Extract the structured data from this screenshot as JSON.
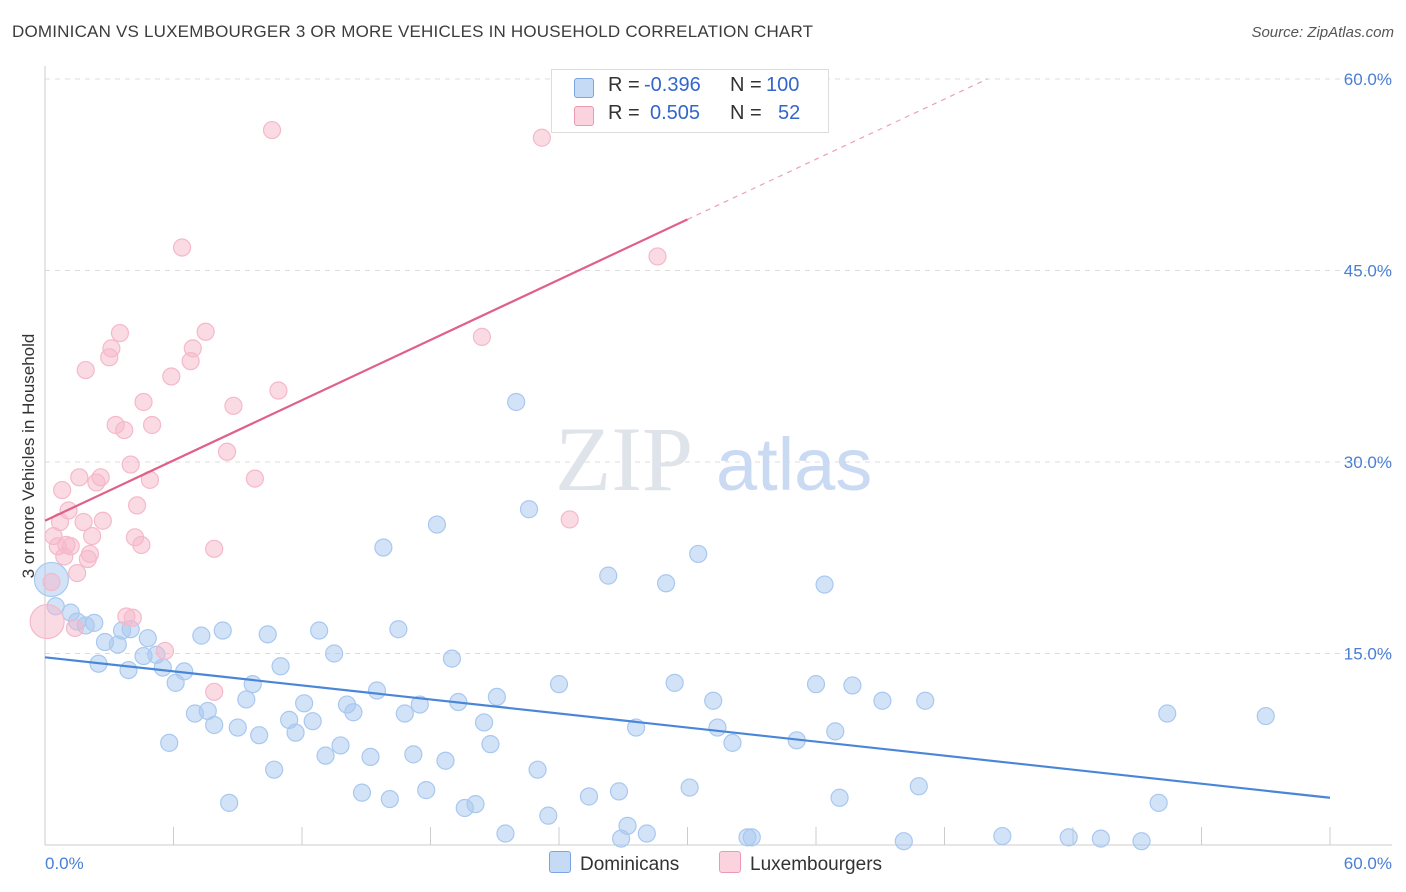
{
  "title": "DOMINICAN VS LUXEMBOURGER 3 OR MORE VEHICLES IN HOUSEHOLD CORRELATION CHART",
  "source": "Source: ZipAtlas.com",
  "watermark": {
    "zip": "ZIP",
    "atlas": "atlas"
  },
  "legend": {
    "rows": [
      {
        "r_label": "R =",
        "r_value": "-0.396",
        "n_label": "N =",
        "n_value": "100",
        "color": "#a8c8f0"
      },
      {
        "r_label": "R =",
        "r_value": "0.505",
        "n_label": "N =",
        "n_value": "52",
        "color": "#f5b8ca"
      }
    ]
  },
  "bottom_legend": [
    {
      "label": "Dominicans",
      "color": "#a8c8f0"
    },
    {
      "label": "Luxembourgers",
      "color": "#f5b8ca"
    }
  ],
  "chart_data": {
    "type": "scatter",
    "title": "DOMINICAN VS LUXEMBOURGER 3 OR MORE VEHICLES IN HOUSEHOLD CORRELATION CHART",
    "xlabel": "",
    "ylabel": "3 or more Vehicles in Household",
    "xlim": [
      0,
      60
    ],
    "ylim": [
      0,
      60
    ],
    "x_tick_labels": [
      "0.0%",
      "60.0%"
    ],
    "y_ticks": [
      15,
      30,
      45,
      60
    ],
    "y_tick_labels": [
      "15.0%",
      "30.0%",
      "45.0%",
      "60.0%"
    ],
    "grid": true,
    "legend_position": "top-center",
    "series": [
      {
        "name": "Dominicans",
        "color": "#4a86d8",
        "fill": "#a8c8f0",
        "trend": {
          "x": [
            0,
            60
          ],
          "y": [
            14.7,
            3.7
          ]
        },
        "points": [
          [
            0.3,
            20.8
          ],
          [
            0.5,
            18.7
          ],
          [
            1.2,
            18.2
          ],
          [
            1.5,
            17.5
          ],
          [
            1.9,
            17.2
          ],
          [
            2.3,
            17.4
          ],
          [
            2.5,
            14.2
          ],
          [
            2.8,
            15.9
          ],
          [
            3.4,
            15.7
          ],
          [
            3.6,
            16.8
          ],
          [
            3.9,
            13.7
          ],
          [
            4.0,
            16.9
          ],
          [
            4.6,
            14.8
          ],
          [
            4.8,
            16.2
          ],
          [
            5.2,
            14.9
          ],
          [
            5.5,
            13.9
          ],
          [
            5.8,
            8.0
          ],
          [
            6.1,
            12.7
          ],
          [
            6.5,
            13.6
          ],
          [
            7.0,
            10.3
          ],
          [
            7.3,
            16.4
          ],
          [
            7.6,
            10.5
          ],
          [
            7.9,
            9.4
          ],
          [
            8.3,
            16.8
          ],
          [
            8.6,
            3.3
          ],
          [
            9.0,
            9.2
          ],
          [
            9.4,
            11.4
          ],
          [
            9.7,
            12.6
          ],
          [
            10.0,
            8.6
          ],
          [
            10.4,
            16.5
          ],
          [
            10.7,
            5.9
          ],
          [
            11.0,
            14.0
          ],
          [
            11.4,
            9.8
          ],
          [
            11.7,
            8.8
          ],
          [
            12.1,
            11.1
          ],
          [
            12.5,
            9.7
          ],
          [
            12.8,
            16.8
          ],
          [
            13.1,
            7.0
          ],
          [
            13.5,
            15.0
          ],
          [
            13.8,
            7.8
          ],
          [
            14.1,
            11.0
          ],
          [
            14.4,
            10.4
          ],
          [
            14.8,
            4.1
          ],
          [
            15.2,
            6.9
          ],
          [
            15.5,
            12.1
          ],
          [
            15.8,
            23.3
          ],
          [
            16.1,
            3.6
          ],
          [
            16.5,
            16.9
          ],
          [
            16.8,
            10.3
          ],
          [
            17.2,
            7.1
          ],
          [
            17.5,
            11.0
          ],
          [
            17.8,
            4.3
          ],
          [
            18.3,
            25.1
          ],
          [
            18.7,
            6.6
          ],
          [
            19.0,
            14.6
          ],
          [
            19.3,
            11.2
          ],
          [
            19.6,
            2.9
          ],
          [
            20.1,
            3.2
          ],
          [
            20.5,
            9.6
          ],
          [
            20.8,
            7.9
          ],
          [
            21.1,
            11.6
          ],
          [
            21.5,
            0.9
          ],
          [
            22.0,
            34.7
          ],
          [
            22.6,
            26.3
          ],
          [
            23.0,
            5.9
          ],
          [
            23.5,
            2.3
          ],
          [
            24.0,
            12.6
          ],
          [
            25.4,
            3.8
          ],
          [
            26.3,
            21.1
          ],
          [
            26.8,
            4.2
          ],
          [
            27.2,
            1.5
          ],
          [
            27.6,
            9.2
          ],
          [
            28.1,
            0.9
          ],
          [
            29.0,
            20.5
          ],
          [
            29.4,
            12.7
          ],
          [
            30.1,
            4.5
          ],
          [
            30.5,
            22.8
          ],
          [
            31.2,
            11.3
          ],
          [
            31.4,
            9.2
          ],
          [
            32.8,
            0.6
          ],
          [
            33.0,
            0.6
          ],
          [
            32.1,
            8.0
          ],
          [
            35.1,
            8.2
          ],
          [
            36.0,
            12.6
          ],
          [
            36.4,
            20.4
          ],
          [
            36.9,
            8.9
          ],
          [
            37.1,
            3.7
          ],
          [
            37.7,
            12.5
          ],
          [
            39.1,
            11.3
          ],
          [
            40.1,
            0.3
          ],
          [
            40.8,
            4.6
          ],
          [
            41.1,
            11.3
          ],
          [
            47.8,
            0.6
          ],
          [
            49.3,
            0.5
          ],
          [
            51.2,
            0.3
          ],
          [
            52.0,
            3.3
          ],
          [
            52.4,
            10.3
          ],
          [
            57.0,
            10.1
          ],
          [
            44.7,
            0.7
          ],
          [
            26.9,
            0.5
          ]
        ]
      },
      {
        "name": "Luxembourgers",
        "color": "#e0608a",
        "fill": "#f5b8ca",
        "trend": {
          "x": [
            0,
            30.0
          ],
          "y": [
            25.4,
            49.0
          ]
        },
        "trend_dashed": {
          "x": [
            30.0,
            44.0
          ],
          "y": [
            49.0,
            60.0
          ]
        },
        "points": [
          [
            0.1,
            17.5
          ],
          [
            0.3,
            20.6
          ],
          [
            0.4,
            24.2
          ],
          [
            0.6,
            23.4
          ],
          [
            0.7,
            25.3
          ],
          [
            0.8,
            27.8
          ],
          [
            0.9,
            22.6
          ],
          [
            1.0,
            23.5
          ],
          [
            1.1,
            26.2
          ],
          [
            1.2,
            23.4
          ],
          [
            1.4,
            17.0
          ],
          [
            1.5,
            21.3
          ],
          [
            1.6,
            28.8
          ],
          [
            1.8,
            25.3
          ],
          [
            1.9,
            37.2
          ],
          [
            2.0,
            22.4
          ],
          [
            2.1,
            22.8
          ],
          [
            2.2,
            24.2
          ],
          [
            2.4,
            28.4
          ],
          [
            2.6,
            28.8
          ],
          [
            2.7,
            25.4
          ],
          [
            3.0,
            38.2
          ],
          [
            3.1,
            38.9
          ],
          [
            3.3,
            32.9
          ],
          [
            3.5,
            40.1
          ],
          [
            3.7,
            32.5
          ],
          [
            3.8,
            17.9
          ],
          [
            4.0,
            29.8
          ],
          [
            4.1,
            17.8
          ],
          [
            4.2,
            24.1
          ],
          [
            4.3,
            26.6
          ],
          [
            4.5,
            23.5
          ],
          [
            4.6,
            34.7
          ],
          [
            4.9,
            28.6
          ],
          [
            5.0,
            32.9
          ],
          [
            5.6,
            15.2
          ],
          [
            5.9,
            36.7
          ],
          [
            6.4,
            46.8
          ],
          [
            6.8,
            37.9
          ],
          [
            6.9,
            38.9
          ],
          [
            7.5,
            40.2
          ],
          [
            7.9,
            23.2
          ],
          [
            7.9,
            12.0
          ],
          [
            8.5,
            30.8
          ],
          [
            8.8,
            34.4
          ],
          [
            9.8,
            28.7
          ],
          [
            10.6,
            56.0
          ],
          [
            10.9,
            35.6
          ],
          [
            20.4,
            39.8
          ],
          [
            23.2,
            55.4
          ],
          [
            24.5,
            25.5
          ],
          [
            28.6,
            46.1
          ]
        ]
      }
    ]
  }
}
